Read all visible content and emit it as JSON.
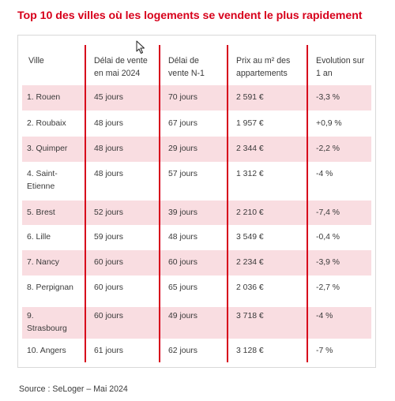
{
  "title": "Top 10 des villes où les logements se vendent le plus rapidement",
  "accent_color": "#d7001b",
  "row_shade_color": "#f9dde1",
  "headers": {
    "city": "Ville",
    "delay_may_l1": "Délai de vente",
    "delay_may_l2": "en mai 2024",
    "delay_prev_l1": "Délai de",
    "delay_prev_l2": "vente N-1",
    "price_l1": "Prix au m² des",
    "price_l2": "appartements",
    "evolution_l1": "Evolution sur",
    "evolution_l2": "1 an"
  },
  "rows": [
    {
      "city_l1": "1. Rouen",
      "city_l2": "",
      "delay_may": "45 jours",
      "delay_prev": "70 jours",
      "price": "2 591 €",
      "evolution": "-3,3 %",
      "shaded": true
    },
    {
      "city_l1": "2. Roubaix",
      "city_l2": "",
      "delay_may": "48 jours",
      "delay_prev": "67 jours",
      "price": "1 957 €",
      "evolution": "+0,9 %",
      "shaded": false
    },
    {
      "city_l1": "3. Quimper",
      "city_l2": "",
      "delay_may": "48 jours",
      "delay_prev": "29 jours",
      "price": "2 344 €",
      "evolution": "-2,2 %",
      "shaded": true
    },
    {
      "city_l1": "4. Saint-",
      "city_l2": "Etienne",
      "delay_may": "48 jours",
      "delay_prev": "57 jours",
      "price": "1 312 €",
      "evolution": "-4 %",
      "shaded": false
    },
    {
      "city_l1": "5. Brest",
      "city_l2": "",
      "delay_may": "52 jours",
      "delay_prev": "39 jours",
      "price": "2 210 €",
      "evolution": "-7,4 %",
      "shaded": true
    },
    {
      "city_l1": "6. Lille",
      "city_l2": "",
      "delay_may": "59 jours",
      "delay_prev": "48 jours",
      "price": "3 549 €",
      "evolution": "-0,4 %",
      "shaded": false
    },
    {
      "city_l1": "7. Nancy",
      "city_l2": "",
      "delay_may": "60 jours",
      "delay_prev": "60 jours",
      "price": "2 234 €",
      "evolution": "-3,9 %",
      "shaded": true
    },
    {
      "city_l1": "8. Perpignan",
      "city_l2": "",
      "delay_may": "60 jours",
      "delay_prev": "65 jours",
      "price": "2 036 €",
      "evolution": "-2,7 %",
      "shaded": false
    },
    {
      "city_l1": "9.",
      "city_l2": "Strasbourg",
      "delay_may": "60 jours",
      "delay_prev": "49 jours",
      "price": "3 718 €",
      "evolution": "-4 %",
      "shaded": true
    },
    {
      "city_l1": "10. Angers",
      "city_l2": "",
      "delay_may": "61 jours",
      "delay_prev": "62 jours",
      "price": "3 128 €",
      "evolution": "-7 %",
      "shaded": false
    }
  ],
  "source": "Source : SeLoger – Mai 2024"
}
